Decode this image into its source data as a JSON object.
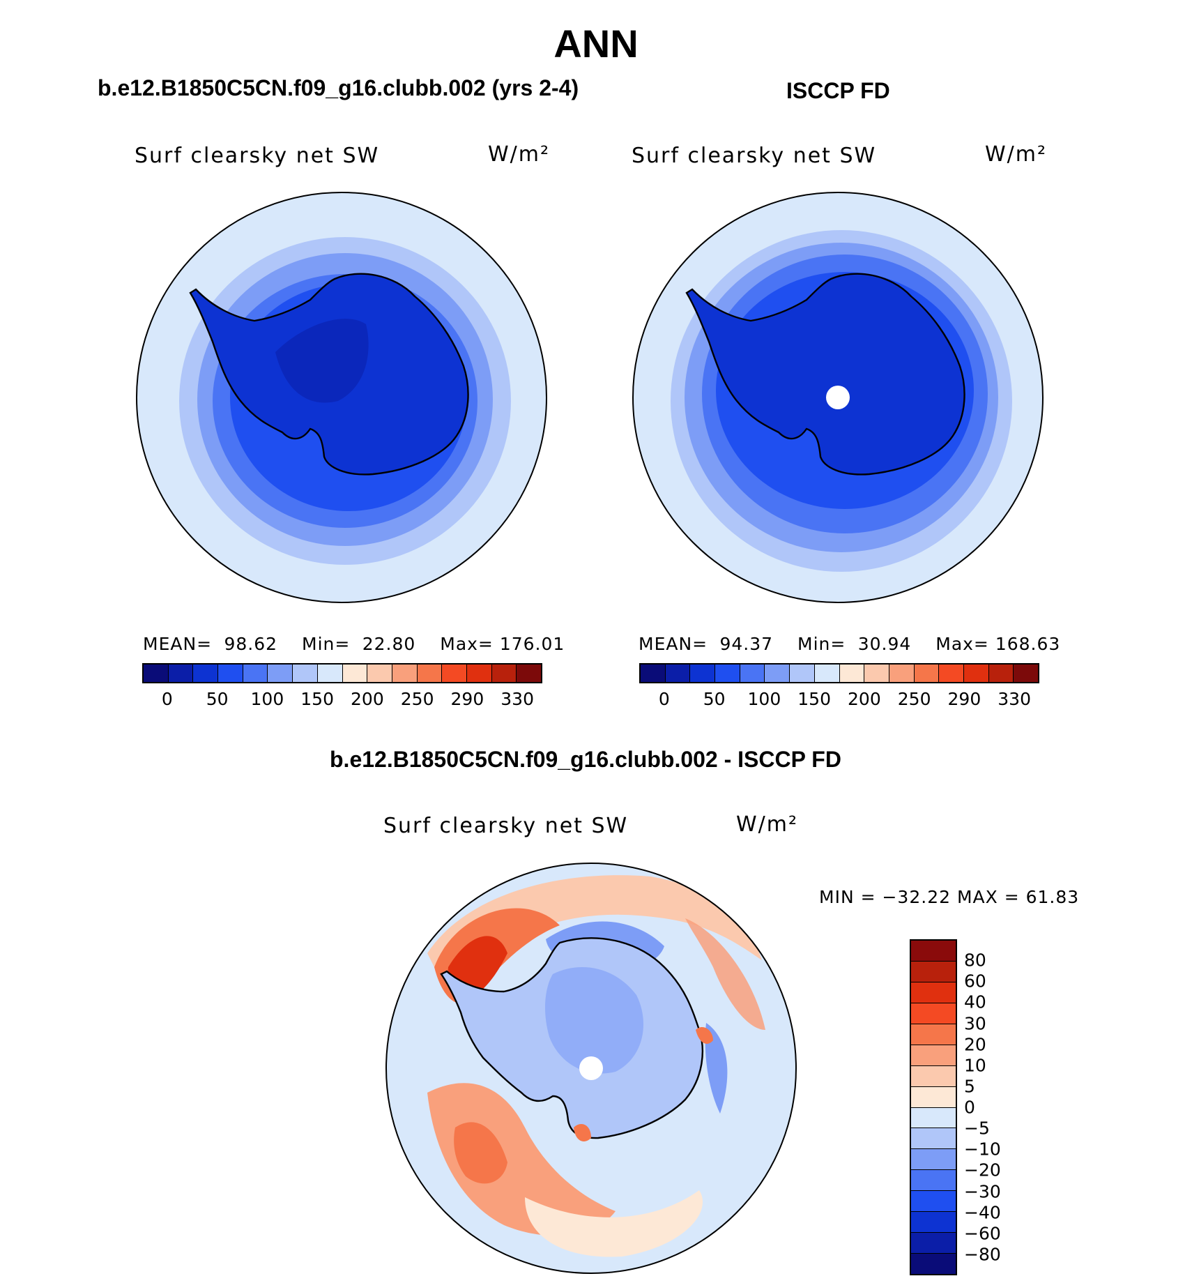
{
  "page_title": "ANN",
  "panels": {
    "model": {
      "title": "b.e12.B1850C5CN.f09_g16.clubb.002 (yrs 2-4)",
      "variable": "Surf clearsky net SW",
      "units": "W/m²",
      "stats": {
        "mean_label": "MEAN=",
        "mean": "98.62",
        "min_label": "Min=",
        "min": "22.80",
        "max_label": "Max=",
        "max": "176.01"
      }
    },
    "obs": {
      "title": "ISCCP FD",
      "variable": "Surf clearsky net SW",
      "units": "W/m²",
      "stats": {
        "mean_label": "MEAN=",
        "mean": "94.37",
        "min_label": "Min=",
        "min": "30.94",
        "max_label": "Max=",
        "max": "168.63"
      }
    },
    "diff": {
      "title": "b.e12.B1850C5CN.f09_g16.clubb.002 - ISCCP FD",
      "variable": "Surf clearsky net SW",
      "units": "W/m²",
      "stats_text": "MIN = −32.22 MAX =   61.83"
    }
  },
  "colorbars": {
    "abs": {
      "colors": [
        "#0a0c78",
        "#0b1ea8",
        "#0d33d2",
        "#1f4ff0",
        "#4a74f4",
        "#7d9df6",
        "#b0c6f9",
        "#d8e8fb",
        "#fde8d6",
        "#fbc9ae",
        "#f9a07c",
        "#f5764a",
        "#f44a23",
        "#e0300f",
        "#b8210c",
        "#7c0a0a"
      ],
      "tick_labels": [
        "0",
        "50",
        "100",
        "150",
        "200",
        "250",
        "290",
        "330"
      ]
    },
    "diff": {
      "colors_top_to_bottom": [
        "#8a0b0b",
        "#b8210c",
        "#e0300f",
        "#f44a23",
        "#f5764a",
        "#f9a07c",
        "#fbc9ae",
        "#fde8d6",
        "#d8e8fb",
        "#b0c6f9",
        "#7d9df6",
        "#4a74f4",
        "#1f4ff0",
        "#0d33d2",
        "#0b1ea8",
        "#0a0c78"
      ],
      "tick_labels": [
        "80",
        "60",
        "40",
        "30",
        "20",
        "10",
        "5",
        "0",
        "−5",
        "−10",
        "−20",
        "−30",
        "−40",
        "−60",
        "−80"
      ]
    }
  },
  "chart_data": [
    {
      "type": "heatmap",
      "projection": "south polar stereographic",
      "title": "b.e12.B1850C5CN.f09_g16.clubb.002 (yrs 2-4)",
      "variable": "Surf clearsky net SW",
      "units": "W/m2",
      "mean": 98.62,
      "min": 22.8,
      "max": 176.01,
      "contour_levels": [
        0,
        25,
        50,
        75,
        100,
        125,
        150,
        175,
        200,
        225,
        250,
        270,
        290,
        310,
        330
      ]
    },
    {
      "type": "heatmap",
      "projection": "south polar stereographic",
      "title": "ISCCP FD",
      "variable": "Surf clearsky net SW",
      "units": "W/m2",
      "mean": 94.37,
      "min": 30.94,
      "max": 168.63,
      "contour_levels": [
        0,
        25,
        50,
        75,
        100,
        125,
        150,
        175,
        200,
        225,
        250,
        270,
        290,
        310,
        330
      ]
    },
    {
      "type": "heatmap",
      "projection": "south polar stereographic",
      "title": "b.e12.B1850C5CN.f09_g16.clubb.002 - ISCCP FD",
      "variable": "Surf clearsky net SW",
      "units": "W/m2",
      "min": -32.22,
      "max": 61.83,
      "contour_levels": [
        -80,
        -60,
        -40,
        -30,
        -20,
        -10,
        -5,
        0,
        5,
        10,
        20,
        30,
        40,
        60,
        80
      ]
    }
  ]
}
